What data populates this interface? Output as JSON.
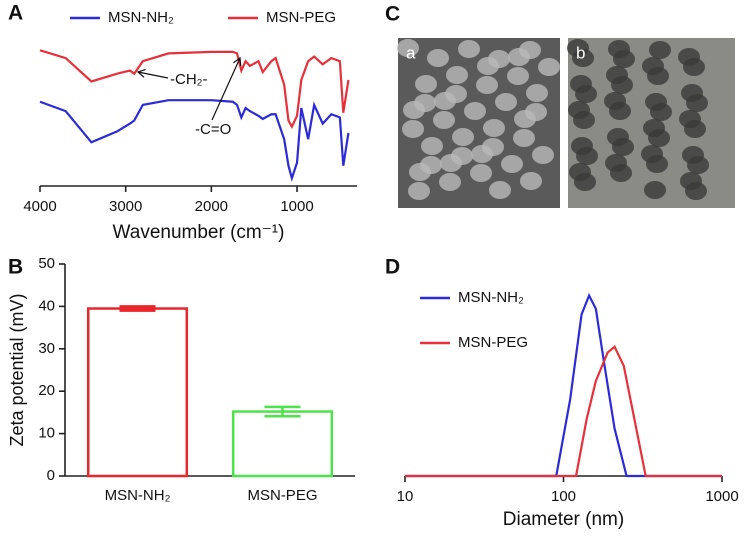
{
  "chart_data": [
    {
      "type": "line",
      "panel": "A",
      "x_label": "Wavenumber (cm⁻¹)",
      "xlim": [
        4000,
        300
      ],
      "ylim": [
        0,
        100
      ],
      "xticks": [
        4000,
        3000,
        2000,
        1000
      ],
      "x": [
        4000,
        3700,
        3400,
        3100,
        2950,
        2900,
        2800,
        2500,
        2000,
        1750,
        1700,
        1650,
        1600,
        1550,
        1450,
        1400,
        1300,
        1250,
        1150,
        1100,
        1060,
        1000,
        950,
        870,
        800,
        700,
        600,
        500,
        460,
        400
      ],
      "series": [
        {
          "name": "MSN-NH₂",
          "color": "#2b2bd9",
          "values": [
            54,
            48,
            28,
            35,
            40,
            42,
            52,
            55,
            55,
            54,
            52,
            44,
            50,
            48,
            45,
            43,
            46,
            46,
            30,
            13,
            5,
            15,
            50,
            30,
            52,
            40,
            46,
            44,
            13,
            34
          ]
        },
        {
          "name": "MSN-PEG",
          "color": "#e8303a",
          "values": [
            87,
            82,
            67,
            72,
            74,
            72,
            80,
            85,
            86,
            86,
            85,
            74,
            80,
            77,
            80,
            73,
            80,
            82,
            65,
            42,
            38,
            45,
            68,
            80,
            83,
            78,
            82,
            80,
            47,
            68
          ]
        }
      ],
      "annotations": [
        "-CH₂-",
        "-C=O"
      ]
    },
    {
      "type": "bar",
      "panel": "B",
      "y_label": "Zeta potential (mV)",
      "categories": [
        "MSN-NH₂",
        "MSN-PEG"
      ],
      "values": [
        39.5,
        15.2
      ],
      "errors": [
        0.5,
        1.1
      ],
      "colors": [
        "#e8262b",
        "#4de34a"
      ],
      "ylim": [
        0,
        50
      ],
      "yticks": [
        0,
        10,
        20,
        30,
        40,
        50
      ]
    },
    {
      "type": "image",
      "panel": "C",
      "labels": [
        "a",
        "b"
      ]
    },
    {
      "type": "line",
      "panel": "D",
      "x_label": "Diameter (nm)",
      "log_x": true,
      "xlim": [
        10,
        1000
      ],
      "ylim": [
        0,
        100
      ],
      "xticks": [
        10,
        100,
        1000
      ],
      "series": [
        {
          "name": "MSN-NH₂",
          "color": "#2b2bd9",
          "x": [
            10,
            90,
            110,
            130,
            145,
            160,
            180,
            210,
            250,
            1000
          ],
          "values": [
            0,
            0,
            40,
            85,
            95,
            88,
            60,
            25,
            0,
            0
          ]
        },
        {
          "name": "MSN-PEG",
          "color": "#e8303a",
          "x": [
            10,
            120,
            140,
            160,
            190,
            210,
            240,
            280,
            330,
            1000
          ],
          "values": [
            0,
            0,
            30,
            50,
            65,
            68,
            58,
            30,
            0,
            0
          ]
        }
      ]
    }
  ]
}
